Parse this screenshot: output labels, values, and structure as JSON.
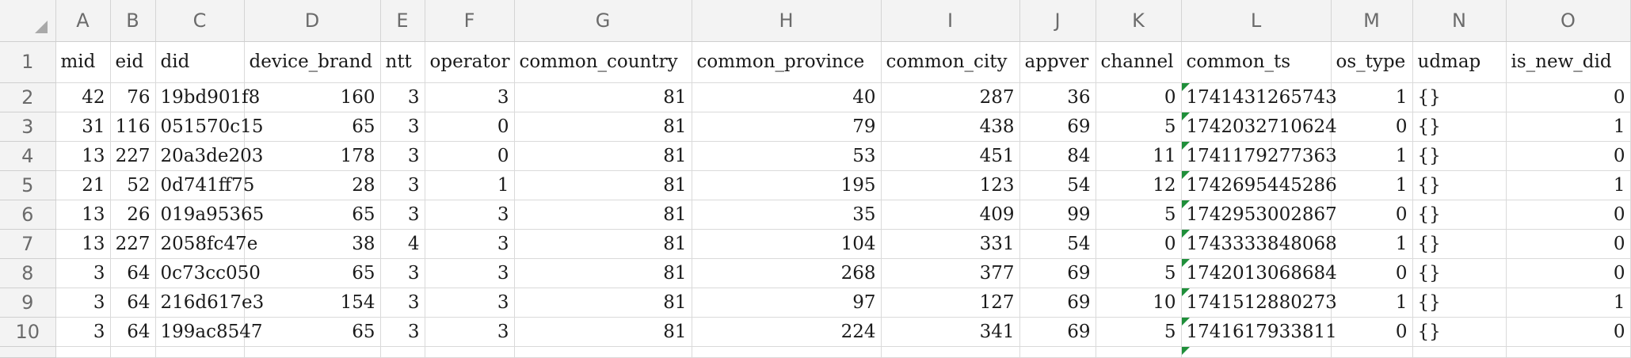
{
  "column_letters": [
    "A",
    "B",
    "C",
    "D",
    "E",
    "F",
    "G",
    "H",
    "I",
    "J",
    "K",
    "L",
    "M",
    "N",
    "O"
  ],
  "headers": [
    "mid",
    "eid",
    "did",
    "device_brand",
    "ntt",
    "operator",
    "common_country",
    "common_province",
    "common_city",
    "appver",
    "channel",
    "common_ts",
    "os_type",
    "udmap",
    "is_new_did"
  ],
  "rows": [
    {
      "n": "2",
      "cells": [
        "42",
        "76",
        "19bd901f8",
        "160",
        "3",
        "3",
        "81",
        "40",
        "287",
        "36",
        "0",
        "1741431265743",
        "1",
        "{}",
        "0"
      ]
    },
    {
      "n": "3",
      "cells": [
        "31",
        "116",
        "051570c15",
        "65",
        "3",
        "0",
        "81",
        "79",
        "438",
        "69",
        "5",
        "1742032710624",
        "0",
        "{}",
        "1"
      ]
    },
    {
      "n": "4",
      "cells": [
        "13",
        "227",
        "20a3de203",
        "178",
        "3",
        "0",
        "81",
        "53",
        "451",
        "84",
        "11",
        "1741179277363",
        "1",
        "{}",
        "0"
      ]
    },
    {
      "n": "5",
      "cells": [
        "21",
        "52",
        "0d741ff75",
        "28",
        "3",
        "1",
        "81",
        "195",
        "123",
        "54",
        "12",
        "1742695445286",
        "1",
        "{}",
        "1"
      ]
    },
    {
      "n": "6",
      "cells": [
        "13",
        "26",
        "019a95365",
        "65",
        "3",
        "3",
        "81",
        "35",
        "409",
        "99",
        "5",
        "1742953002867",
        "0",
        "{}",
        "0"
      ]
    },
    {
      "n": "7",
      "cells": [
        "13",
        "227",
        "2058fc47e",
        "38",
        "4",
        "3",
        "81",
        "104",
        "331",
        "54",
        "0",
        "1743333848068",
        "1",
        "{}",
        "0"
      ]
    },
    {
      "n": "8",
      "cells": [
        "3",
        "64",
        "0c73cc050",
        "65",
        "3",
        "3",
        "81",
        "268",
        "377",
        "69",
        "5",
        "1742013068684",
        "0",
        "{}",
        "0"
      ]
    },
    {
      "n": "9",
      "cells": [
        "3",
        "64",
        "216d617e3",
        "154",
        "3",
        "3",
        "81",
        "97",
        "127",
        "69",
        "10",
        "1741512880273",
        "1",
        "{}",
        "1"
      ]
    },
    {
      "n": "10",
      "cells": [
        "3",
        "64",
        "199ac8547",
        "65",
        "3",
        "3",
        "81",
        "224",
        "341",
        "69",
        "5",
        "1741617933811",
        "0",
        "{}",
        "0"
      ]
    }
  ]
}
